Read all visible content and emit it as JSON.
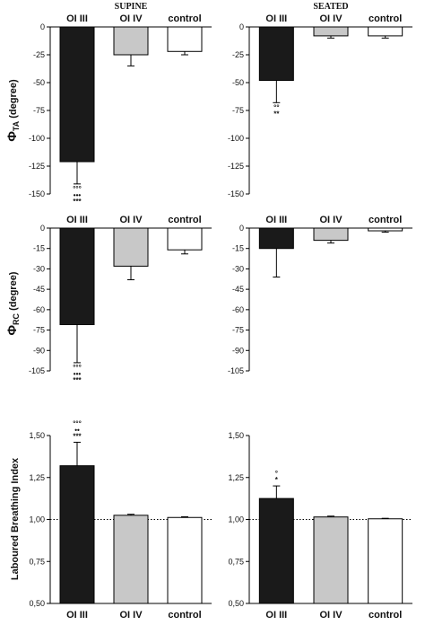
{
  "titles": {
    "supine": "SUPINE",
    "seated": "SEATED"
  },
  "y_labels": {
    "ta": {
      "phi": "Φ",
      "sub": "TA",
      "rest": " (degree)"
    },
    "rc": {
      "phi": "Φ",
      "sub": "RC",
      "rest": " (degree)"
    },
    "lbi": {
      "text": "Laboured Breathing Index"
    }
  },
  "colors": {
    "OI III": "#1a1a1a",
    "OI IV": "#c8c8c8",
    "control": "#ffffff"
  },
  "chart_data": [
    {
      "type": "bar",
      "panel": "phi_ta_supine",
      "column_title": "SUPINE",
      "categories": [
        "OI III",
        "OI IV",
        "control"
      ],
      "values": [
        -121,
        -25,
        -22
      ],
      "errors": [
        20,
        10,
        3
      ],
      "ylim": [
        -150,
        0
      ],
      "yticks": [
        "0",
        "-25",
        "-50",
        "-75",
        "-100",
        "-125",
        "-150"
      ],
      "annotations": [
        {
          "category": "OI III",
          "lines": [
            "°°°",
            "•••",
            "***"
          ]
        }
      ]
    },
    {
      "type": "bar",
      "panel": "phi_ta_seated",
      "column_title": "SEATED",
      "categories": [
        "OI III",
        "OI IV",
        "control"
      ],
      "values": [
        -48,
        -8,
        -8
      ],
      "errors": [
        20,
        2,
        2
      ],
      "ylim": [
        -150,
        0
      ],
      "yticks": [
        "0",
        "-25",
        "-50",
        "-75",
        "-100",
        "-125",
        "-150"
      ],
      "annotations": [
        {
          "category": "OI III",
          "lines": [
            "°°",
            "**"
          ]
        }
      ]
    },
    {
      "type": "bar",
      "panel": "phi_rc_supine",
      "categories": [
        "OI III",
        "OI IV",
        "control"
      ],
      "values": [
        -71,
        -28,
        -16
      ],
      "errors": [
        28,
        10,
        3
      ],
      "ylim": [
        -105,
        0
      ],
      "yticks": [
        "0",
        "-15",
        "-30",
        "-45",
        "-60",
        "-75",
        "-90",
        "-105"
      ],
      "annotations": [
        {
          "category": "OI III",
          "lines": [
            "°°°",
            "•••",
            "***"
          ]
        }
      ]
    },
    {
      "type": "bar",
      "panel": "phi_rc_seated",
      "categories": [
        "OI III",
        "OI IV",
        "control"
      ],
      "values": [
        -15,
        -9,
        -2
      ],
      "errors": [
        21,
        2,
        1
      ],
      "ylim": [
        -105,
        0
      ],
      "yticks": [
        "0",
        "-15",
        "-30",
        "-45",
        "-60",
        "-75",
        "-90",
        "-105"
      ],
      "annotations": []
    },
    {
      "type": "bar",
      "panel": "lbi_supine",
      "categories": [
        "OI III",
        "OI IV",
        "control"
      ],
      "values": [
        1.32,
        1.025,
        1.012
      ],
      "errors": [
        0.14,
        0.006,
        0.004
      ],
      "ylim": [
        0.5,
        1.5
      ],
      "yticks": [
        "1,50",
        "1,25",
        "1,00",
        "0,75",
        "0,50"
      ],
      "reference_line": 1.0,
      "annotations": [
        {
          "category": "OI III",
          "lines": [
            "°°°",
            "••",
            "***"
          ]
        }
      ]
    },
    {
      "type": "bar",
      "panel": "lbi_seated",
      "categories": [
        "OI III",
        "OI IV",
        "control"
      ],
      "values": [
        1.125,
        1.015,
        1.004
      ],
      "errors": [
        0.075,
        0.005,
        0.003
      ],
      "ylim": [
        0.5,
        1.5
      ],
      "yticks": [
        "1,50",
        "1,25",
        "1,00",
        "0,75",
        "0,50"
      ],
      "reference_line": 1.0,
      "annotations": [
        {
          "category": "OI III",
          "lines": [
            "°",
            "*"
          ]
        }
      ]
    }
  ]
}
